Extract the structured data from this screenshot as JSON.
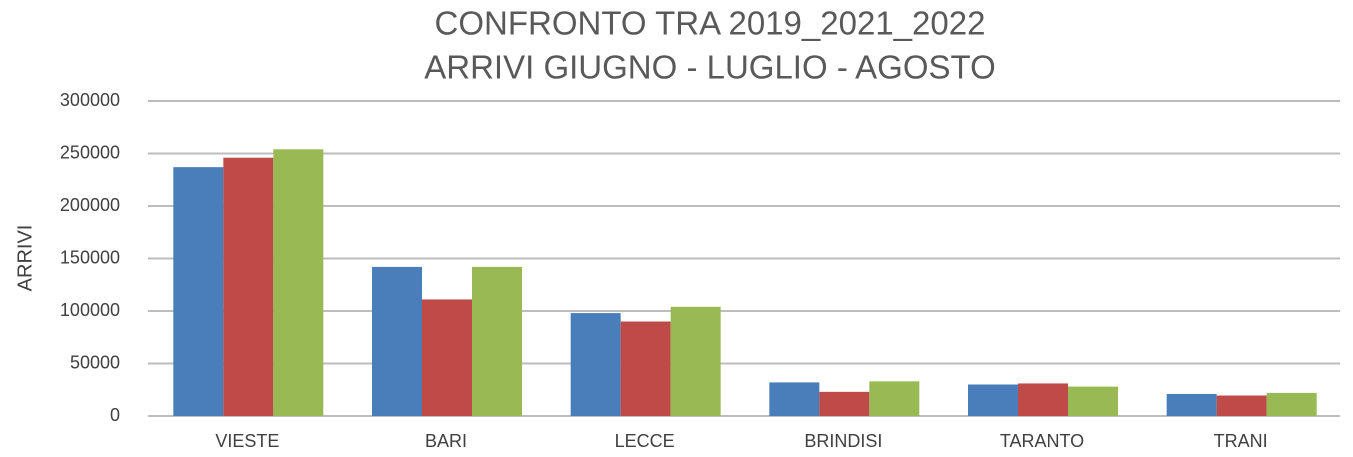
{
  "chart_data": {
    "type": "bar",
    "title": "CONFRONTO TRA 2019_2021_2022",
    "subtitle": "ARRIVI GIUGNO - LUGLIO - AGOSTO",
    "y_label": "ARRIVI",
    "categories": [
      "VIESTE",
      "BARI",
      "LECCE",
      "BRINDISI",
      "TARANTO",
      "TRANI"
    ],
    "series": [
      {
        "color": "#4a7ebb",
        "values": [
          237000,
          142000,
          98000,
          32000,
          30000,
          21000
        ]
      },
      {
        "color": "#be4b48",
        "values": [
          246000,
          111000,
          90000,
          23000,
          31000,
          19500
        ]
      },
      {
        "color": "#98b954",
        "values": [
          254000,
          142000,
          104000,
          33000,
          28000,
          22000
        ]
      }
    ],
    "ylim": [
      0,
      300000
    ],
    "yticks": [
      0,
      50000,
      100000,
      150000,
      200000,
      250000,
      300000
    ],
    "grid": true
  }
}
